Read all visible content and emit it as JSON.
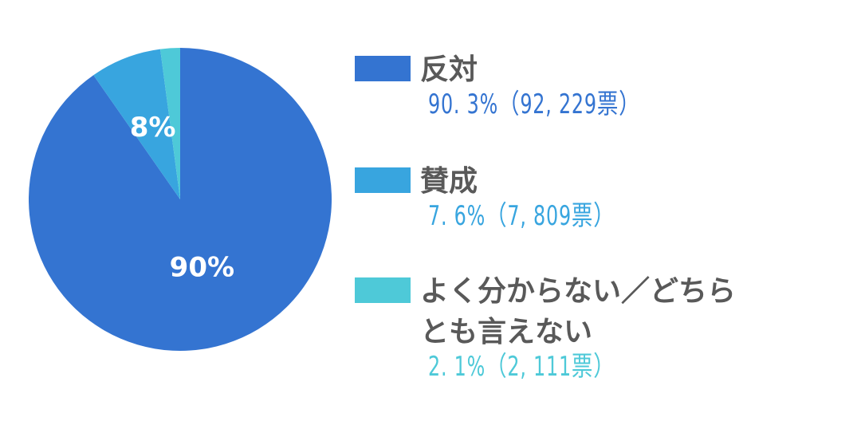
{
  "chart_data": {
    "type": "pie",
    "colors": [
      "#3474d1",
      "#38a5df",
      "#4ec9d8"
    ],
    "slices": [
      {
        "name": "反対",
        "value": 90.3,
        "label": "90%",
        "detail": "90.3%（92,229票）",
        "color": "#3474d1"
      },
      {
        "name": "賛成",
        "value": 7.6,
        "label": "8%",
        "detail": "7.6%（7,809票）",
        "color": "#38a5df"
      },
      {
        "name": "よく分からない／どちらとも言えない",
        "value": 2.1,
        "label": "",
        "detail": "2.1%（2,111票）",
        "color": "#4ec9d8"
      }
    ],
    "legend_position": "right"
  },
  "legend": {
    "item_0": {
      "label": "反対",
      "value": "90. 3%（92, 229票）"
    },
    "item_1": {
      "label": "賛成",
      "value": "7. 6%（7, 809票）"
    },
    "item_2": {
      "label": "よく分からない／どちら\nとも言えない",
      "value": "2. 1%（2, 111票）"
    }
  }
}
